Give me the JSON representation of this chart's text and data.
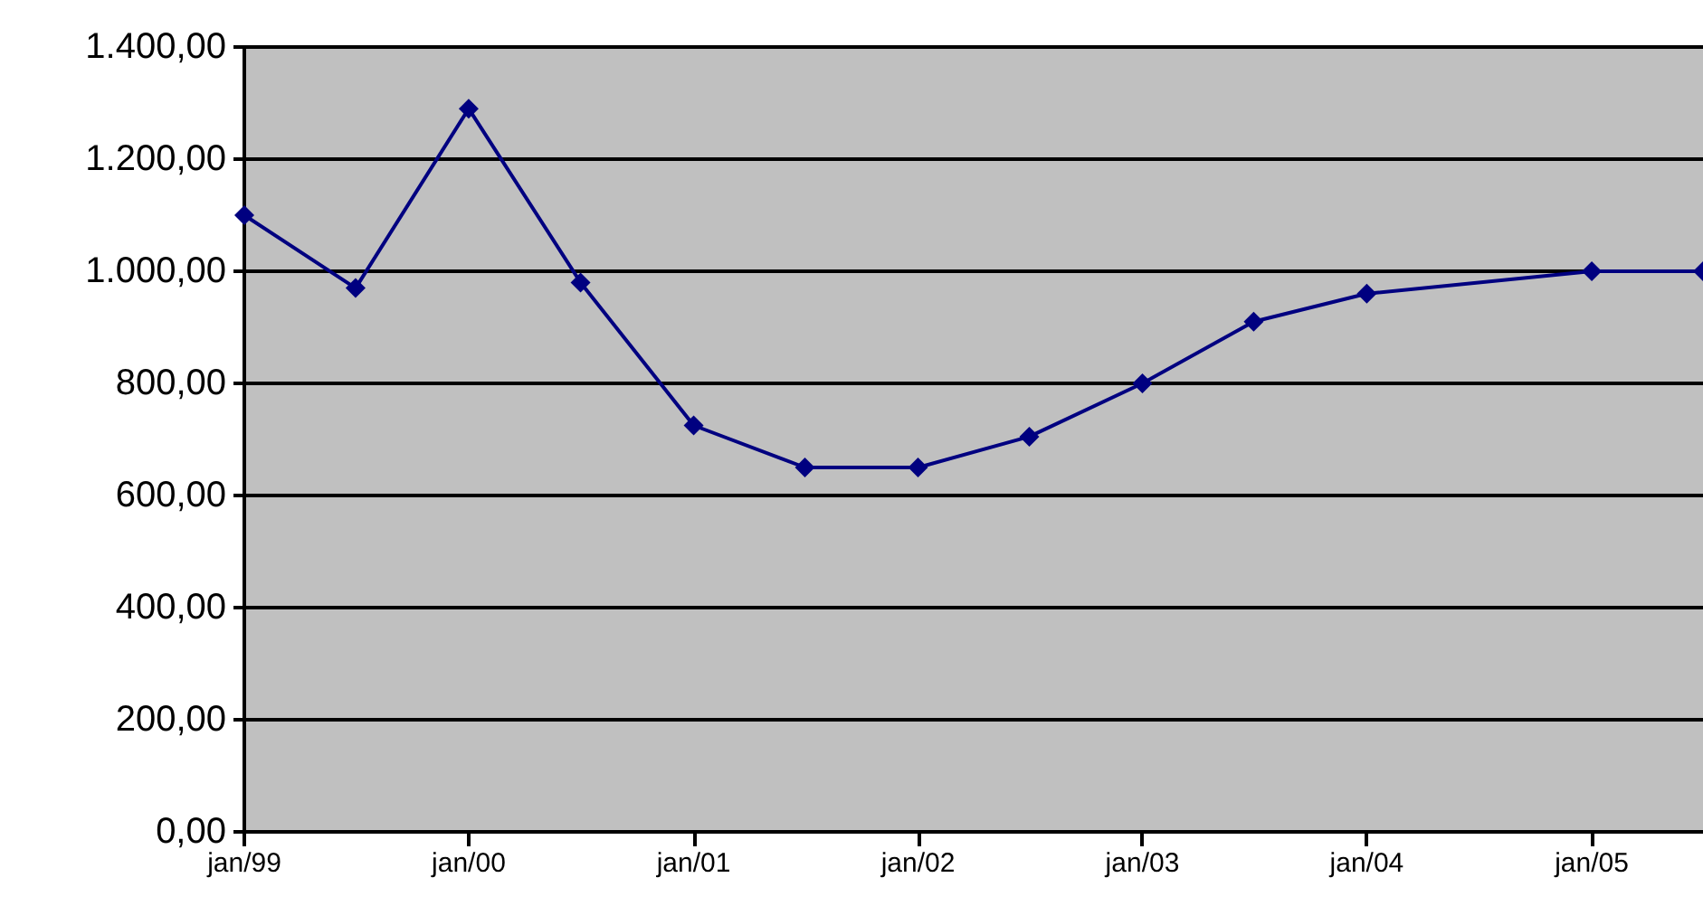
{
  "chart_data": {
    "type": "line",
    "x": [
      "1999-01",
      "1999-07",
      "2000-01",
      "2000-07",
      "2001-01",
      "2001-07",
      "2002-01",
      "2002-07",
      "2003-01",
      "2003-07",
      "2004-01",
      "2005-01",
      "2005-07"
    ],
    "series": [
      {
        "color": "#000080",
        "values": [
          1100,
          970,
          1290,
          980,
          725,
          650,
          650,
          705,
          800,
          910,
          960,
          1000,
          1000
        ]
      }
    ],
    "xlim": [
      "1999-01",
      "2005-07"
    ],
    "xticks": [
      {
        "value": "1999-01",
        "label": "jan/99"
      },
      {
        "value": "2000-01",
        "label": "jan/00"
      },
      {
        "value": "2001-01",
        "label": "jan/01"
      },
      {
        "value": "2002-01",
        "label": "jan/02"
      },
      {
        "value": "2003-01",
        "label": "jan/03"
      },
      {
        "value": "2004-01",
        "label": "jan/04"
      },
      {
        "value": "2005-01",
        "label": "jan/05"
      }
    ],
    "ylim": [
      0,
      1400
    ],
    "yticks": [
      {
        "value": 0,
        "label": "0,00"
      },
      {
        "value": 200,
        "label": "200,00"
      },
      {
        "value": 400,
        "label": "400,00"
      },
      {
        "value": 600,
        "label": "600,00"
      },
      {
        "value": 800,
        "label": "800,00"
      },
      {
        "value": 1000,
        "label": "1.000,00"
      },
      {
        "value": 1200,
        "label": "1.200,00"
      },
      {
        "value": 1400,
        "label": "1.400,00"
      }
    ],
    "grid": "y",
    "marker": "diamond",
    "line_style": "solid"
  }
}
